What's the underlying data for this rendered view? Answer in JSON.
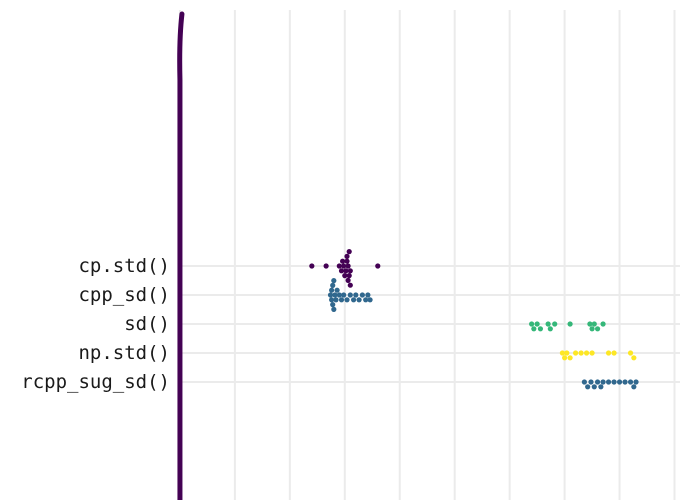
{
  "chart_data": {
    "type": "scatter",
    "title": "",
    "xlabel": "",
    "ylabel": "",
    "grid": true,
    "legend": "none",
    "categories": [
      "cp.std()",
      "cpp_sd()",
      "sd()",
      "np.std()",
      "rcpp_sug_sd()"
    ],
    "series": [
      {
        "category": "cp.std()",
        "color": "#440154",
        "values": [
          2.55,
          2.68,
          2.8,
          2.82,
          2.83,
          2.84,
          2.85,
          2.86,
          2.87,
          2.87,
          2.88,
          2.88,
          2.89,
          2.89,
          2.9,
          2.9,
          3.15
        ]
      },
      {
        "category": "cpp_sd()",
        "color": "#31688e",
        "values": [
          2.72,
          2.73,
          2.73,
          2.74,
          2.74,
          2.75,
          2.75,
          2.76,
          2.77,
          2.78,
          2.8,
          2.82,
          2.84,
          2.87,
          2.9,
          2.93,
          2.95,
          2.98,
          3.01,
          3.04,
          3.06,
          3.08
        ]
      },
      {
        "category": "sd()",
        "color": "#35b779",
        "values": [
          4.55,
          4.57,
          4.6,
          4.63,
          4.7,
          4.72,
          4.76,
          4.9,
          5.08,
          5.1,
          5.12,
          5.15,
          5.2
        ]
      },
      {
        "category": "np.std()",
        "color": "#fde725",
        "values": [
          4.83,
          4.85,
          4.87,
          4.9,
          4.95,
          5.0,
          5.05,
          5.1,
          5.25,
          5.3,
          5.45,
          5.48
        ]
      },
      {
        "category": "rcpp_sug_sd()",
        "color": "#31688e",
        "values": [
          5.03,
          5.06,
          5.09,
          5.12,
          5.15,
          5.18,
          5.2,
          5.25,
          5.3,
          5.35,
          5.4,
          5.45,
          5.48,
          5.5
        ]
      }
    ],
    "axis_line": {
      "color": "#440154",
      "x": 1.35
    },
    "xlim": [
      0.85,
      5.9
    ],
    "grid_x": [
      1.35,
      1.85,
      2.35,
      2.85,
      3.35,
      3.85,
      4.35,
      4.85,
      5.35,
      5.85
    ]
  }
}
